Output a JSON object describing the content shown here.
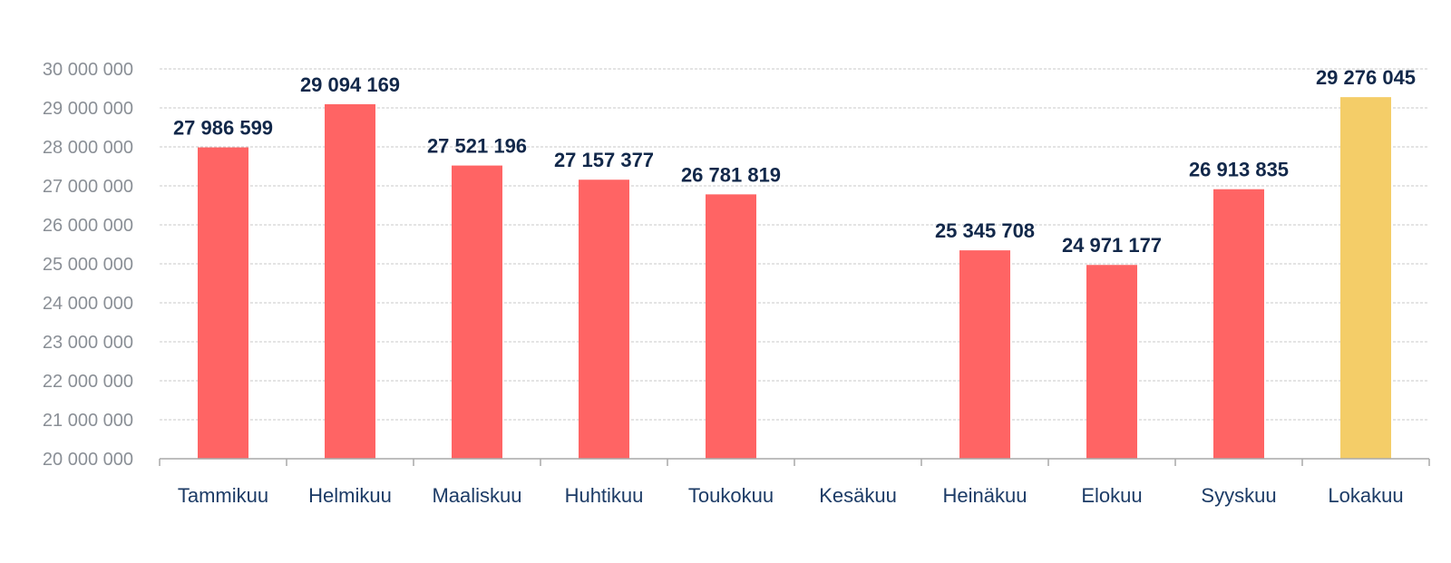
{
  "chart_data": {
    "type": "bar",
    "title": "",
    "xlabel": "",
    "ylabel": "",
    "categories": [
      "Tammikuu",
      "Helmikuu",
      "Maaliskuu",
      "Huhtikuu",
      "Toukokuu",
      "Kesäkuu",
      "Heinäkuu",
      "Elokuu",
      "Syyskuu",
      "Lokakuu"
    ],
    "values": [
      27986599,
      29094169,
      27521196,
      27157377,
      26781819,
      null,
      25345708,
      24971177,
      26913835,
      29276045
    ],
    "value_labels": [
      "27 986 599",
      "29 094 169",
      "27 521 196",
      "27 157 377",
      "26 781 819",
      "",
      "25 345 708",
      "24 971 177",
      "26 913 835",
      "29 276 045"
    ],
    "ylim": [
      20000000,
      30000000
    ],
    "yticks": [
      20000000,
      21000000,
      22000000,
      23000000,
      24000000,
      25000000,
      26000000,
      27000000,
      28000000,
      29000000,
      30000000
    ],
    "ytick_labels": [
      "20 000 000",
      "21 000 000",
      "22 000 000",
      "23 000 000",
      "24 000 000",
      "25 000 000",
      "26 000 000",
      "27 000 000",
      "28 000 000",
      "29 000 000",
      "30 000 000"
    ],
    "grid": true,
    "legend": "none",
    "colors": {
      "bar": "#ff6464",
      "highlight": "#f4cd68",
      "label": "#12284a",
      "category_label": "#1c3b66",
      "tick_label": "#8a8f96"
    },
    "highlight_category": "Lokakuu"
  }
}
